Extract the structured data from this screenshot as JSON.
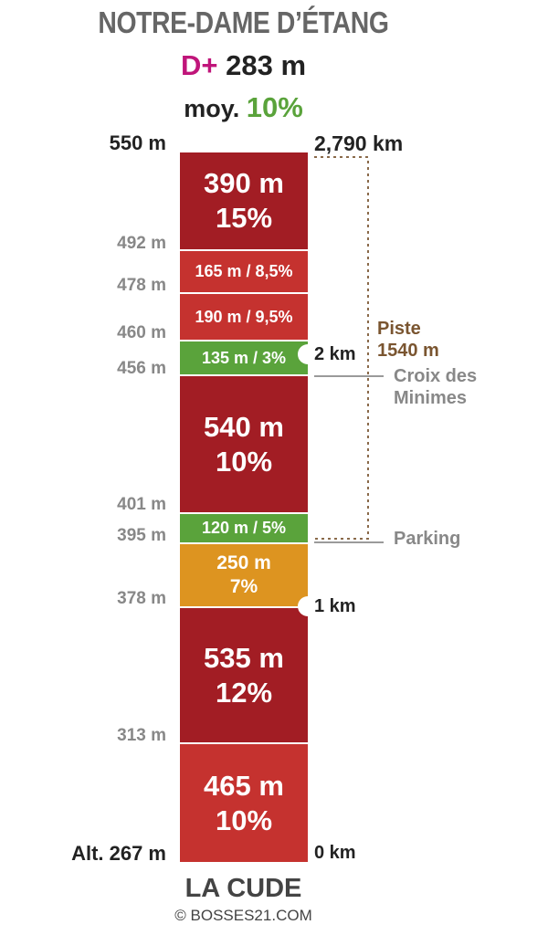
{
  "header": {
    "title": "NOTRE-DAME D’ÉTANG",
    "dplus_prefix": "D+",
    "dplus_value": "283 m",
    "average_prefix": "moy.",
    "average_value": "10%"
  },
  "top_altitude": "550 m",
  "top_distance": "2,790 km",
  "segments": [
    {
      "length": "390 m",
      "grade": "15%",
      "color": "#a21d24"
    },
    {
      "label": "165 m / 8,5%",
      "color": "#c5322f"
    },
    {
      "label": "190 m / 9,5%",
      "color": "#c5322f"
    },
    {
      "label": "135 m / 3%",
      "color": "#5aa33b"
    },
    {
      "length": "540 m",
      "grade": "10%",
      "color": "#a21d24"
    },
    {
      "label": "120 m / 5%",
      "color": "#5aa33b"
    },
    {
      "length": "250 m",
      "grade": "7%",
      "color": "#dd9420"
    },
    {
      "length": "535 m",
      "grade": "12%",
      "color": "#a21d24"
    },
    {
      "length": "465 m",
      "grade": "10%",
      "color": "#c5322f"
    }
  ],
  "altitudes": [
    "492 m",
    "478 m",
    "460 m",
    "456 m",
    "401 m",
    "395 m",
    "378 m",
    "313 m"
  ],
  "bottom_altitude": "Alt. 267 m",
  "km_markers": [
    "2 km",
    "1 km",
    "0 km"
  ],
  "piste": {
    "line1": "Piste",
    "line2": "1540 m",
    "color": "#7a5530"
  },
  "places": [
    {
      "line1": "Croix des",
      "line2": "Minimes"
    },
    {
      "line1": "Parking"
    }
  ],
  "footer": {
    "start_name": "LA CUDE",
    "copyright": "© BOSSES21.COM"
  }
}
